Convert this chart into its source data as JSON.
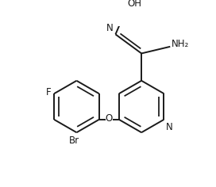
{
  "background_color": "#ffffff",
  "line_color": "#1a1a1a",
  "line_width": 1.4,
  "font_size": 8.5,
  "fig_width": 2.72,
  "fig_height": 2.36,
  "dpi": 100,
  "label_F": "F",
  "label_Br": "Br",
  "label_O": "O",
  "label_N": "N",
  "label_OH": "OH",
  "label_NH2": "NH₂"
}
